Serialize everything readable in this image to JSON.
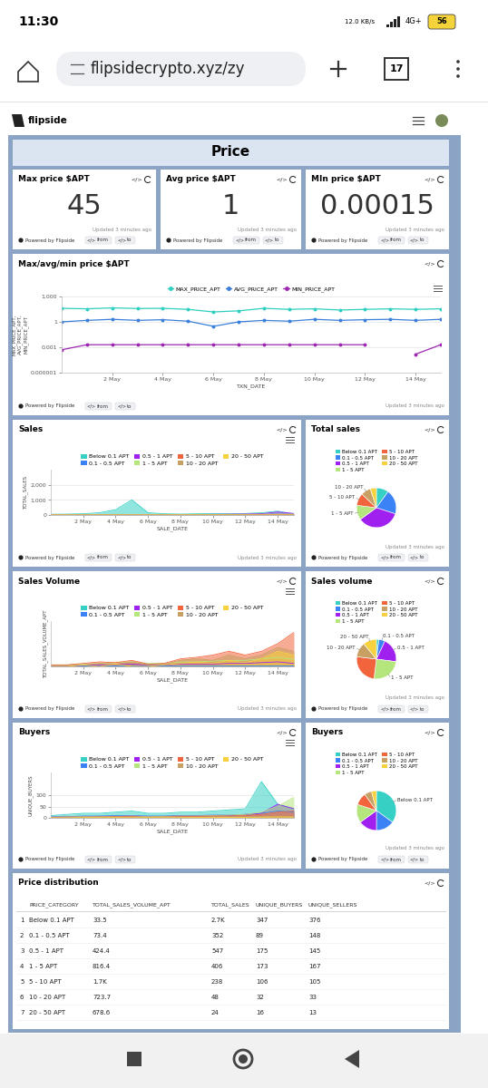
{
  "status_bar": {
    "time": "11:30",
    "speed": "12.0 KB/s",
    "network": "4G+",
    "battery": "56"
  },
  "browser": {
    "url": "flipsidecrypto.xyz/zy",
    "tabs": "17"
  },
  "header": {
    "brand": "flipside"
  },
  "section": {
    "title": "Price"
  },
  "panel_footer": {
    "powered_by": "Powered by Flipside",
    "embed": "</>",
    "from": "from",
    "to": "to",
    "updated": "Updated 3 minutes ago"
  },
  "kpis": [
    {
      "title": "Max price $APT",
      "value": 45
    },
    {
      "title": "Avg price $APT",
      "value": 1
    },
    {
      "title": "MIn price $APT",
      "value": 0.00015
    }
  ],
  "chart_data": [
    {
      "type": "line",
      "title": "Max/avg/min price $APT",
      "x_label": "TXN_DATE",
      "y_label": "MAX_PRICE_APT,\nAVG_PRICE_APT,\nMIN_PRICE_APT",
      "categories": [
        null,
        null,
        "2 May",
        null,
        "4 May",
        null,
        "6 May",
        null,
        "8 May",
        null,
        "10 May",
        null,
        "12 May",
        null,
        "14 May",
        null
      ],
      "series": [
        {
          "name": "MAX_PRICE_APT",
          "color": "#2ecfc0",
          "marker": "circle",
          "values": [
            40,
            35,
            45,
            38,
            40,
            30,
            15,
            20,
            40,
            30,
            35,
            25,
            30,
            35,
            30,
            35
          ]
        },
        {
          "name": "AVG_PRICE_APT",
          "color": "#3a7fd9",
          "marker": "circle",
          "values": [
            1,
            1.5,
            2,
            1.5,
            1.8,
            1.2,
            0.3,
            1,
            1.5,
            1.2,
            2,
            1.5,
            1.8,
            2,
            1.5,
            2
          ]
        },
        {
          "name": "MIN_PRICE_APT",
          "color": "#9c27b0",
          "marker": "circle",
          "values": [
            0.0005,
            0.002,
            0.002,
            0.002,
            0.002,
            0.002,
            0.002,
            0.002,
            0.002,
            0.002,
            0.002,
            0.002,
            0.002,
            null,
            0.00015,
            0.002
          ]
        }
      ],
      "log": "y",
      "ylim": [
        1e-06,
        1000
      ],
      "yticks": [
        {
          "value": 1e-06,
          "label": "0.000001"
        },
        0.001,
        1,
        {
          "value": 1000,
          "label": "1,000"
        }
      ],
      "grid": true,
      "legend": "top"
    },
    {
      "type": "area",
      "title": "Sales",
      "x_label": "SALE_DATE",
      "y_label": "TOTAL_SALES",
      "categories": [
        null,
        null,
        "2 May",
        null,
        "4 May",
        null,
        "6 May",
        null,
        "8 May",
        null,
        "10 May",
        null,
        "12 May",
        null,
        "14 May",
        null
      ],
      "series": [
        {
          "name": "Below 0.1 APT",
          "color": "#36d1c4",
          "values": [
            50,
            60,
            80,
            150,
            350,
            1000,
            150,
            80,
            60,
            80,
            100,
            80,
            100,
            150,
            250,
            80
          ]
        },
        {
          "name": "0.1 - 0.5 APT",
          "color": "#3b82f6",
          "values": [
            10,
            15,
            20,
            20,
            25,
            30,
            20,
            20,
            25,
            25,
            30,
            25,
            25,
            30,
            40,
            30
          ]
        },
        {
          "name": "0.5 - 1 APT",
          "color": "#a020f0",
          "values": [
            10,
            10,
            15,
            20,
            20,
            25,
            20,
            20,
            30,
            30,
            40,
            50,
            60,
            80,
            200,
            100
          ]
        },
        {
          "name": "1 - 5 APT",
          "color": "#b5e67e",
          "values": [
            10,
            10,
            15,
            15,
            20,
            20,
            15,
            20,
            25,
            25,
            30,
            30,
            35,
            40,
            60,
            50
          ]
        },
        {
          "name": "5 - 10 APT",
          "color": "#f2643c",
          "values": [
            5,
            5,
            5,
            5,
            10,
            10,
            5,
            10,
            10,
            15,
            15,
            20,
            25,
            30,
            40,
            30
          ]
        },
        {
          "name": "10 - 20 APT",
          "color": "#c9a063",
          "values": [
            1,
            1,
            2,
            2,
            2,
            3,
            2,
            2,
            3,
            3,
            4,
            4,
            5,
            5,
            6,
            5
          ]
        },
        {
          "name": "20 - 50 APT",
          "color": "#f7d23e",
          "values": [
            0,
            1,
            1,
            1,
            1,
            1,
            1,
            1,
            1,
            2,
            2,
            2,
            2,
            2,
            3,
            2
          ]
        }
      ],
      "ylim": [
        0,
        3000
      ],
      "yticks": [
        0,
        {
          "value": 1000,
          "label": "1,000"
        },
        {
          "value": 2000,
          "label": "2,000"
        }
      ],
      "grid": true,
      "legend": "top",
      "stacked": false
    },
    {
      "type": "pie",
      "title": "Total sales",
      "categories": [
        "Below 0.1 APT",
        "0.1 - 0.5 APT",
        "0.5 - 1 APT",
        "1 - 5 APT",
        "5 - 10 APT",
        "10 - 20 APT",
        "20 - 50 APT"
      ],
      "values": [
        10,
        20,
        35,
        12,
        10,
        8,
        5
      ],
      "colors": [
        "#36d1c4",
        "#3b82f6",
        "#a020f0",
        "#b5e67e",
        "#f2643c",
        "#c9a063",
        "#f7d23e"
      ],
      "slice_labels": [
        null,
        null,
        null,
        "1 - 5 APT",
        "5 - 10 APT",
        "10 - 20 APT",
        null
      ],
      "legend": "top"
    },
    {
      "type": "area",
      "title": "Sales Volume",
      "x_label": "SALE_DATE",
      "y_label": "TOTAL_SALES_VOLUME_APT",
      "categories": [
        null,
        null,
        "2 May",
        null,
        "4 May",
        null,
        "6 May",
        null,
        "8 May",
        null,
        "10 May",
        null,
        "12 May",
        null,
        "14 May",
        null
      ],
      "series": [
        {
          "name": "Below 0.1 APT",
          "color": "#36d1c4",
          "values": [
            3,
            3,
            3,
            3,
            5,
            8,
            3,
            3,
            3,
            3,
            3,
            3,
            3,
            3,
            4,
            3
          ]
        },
        {
          "name": "0.1 - 0.5 APT",
          "color": "#3b82f6",
          "values": [
            5,
            5,
            5,
            5,
            6,
            8,
            5,
            5,
            5,
            6,
            6,
            5,
            5,
            6,
            8,
            6
          ]
        },
        {
          "name": "0.5 - 1 APT",
          "color": "#a020f0",
          "values": [
            10,
            10,
            15,
            20,
            25,
            30,
            20,
            20,
            30,
            30,
            30,
            40,
            40,
            50,
            60,
            40
          ]
        },
        {
          "name": "1 - 5 APT",
          "color": "#b5e67e",
          "values": [
            20,
            20,
            30,
            40,
            50,
            60,
            40,
            40,
            60,
            60,
            70,
            80,
            80,
            100,
            120,
            90
          ]
        },
        {
          "name": "5 - 10 APT",
          "color": "#f2643c",
          "values": [
            20,
            20,
            40,
            60,
            50,
            80,
            30,
            40,
            100,
            120,
            150,
            200,
            150,
            200,
            300,
            450
          ]
        },
        {
          "name": "10 - 20 APT",
          "color": "#c9a063",
          "values": [
            10,
            10,
            20,
            40,
            30,
            60,
            20,
            30,
            80,
            100,
            80,
            150,
            100,
            150,
            250,
            200
          ]
        },
        {
          "name": "20 - 50 APT",
          "color": "#f7d23e",
          "values": [
            0,
            0,
            20,
            0,
            30,
            0,
            0,
            20,
            40,
            60,
            40,
            80,
            50,
            100,
            200,
            150
          ]
        }
      ],
      "ylim": [
        0,
        600
      ],
      "tick_labels": "x",
      "grid": false,
      "legend": "top",
      "stacked": false
    },
    {
      "type": "pie",
      "title": "Sales volume",
      "categories": [
        "Below 0.1 APT",
        "0.1 - 0.5 APT",
        "0.5 - 1 APT",
        "1 - 5 APT",
        "5 - 10 APT",
        "10 - 20 APT",
        "20 - 50 APT"
      ],
      "values": [
        2,
        5,
        20,
        25,
        25,
        12,
        11
      ],
      "colors": [
        "#36d1c4",
        "#3b82f6",
        "#a020f0",
        "#b5e67e",
        "#f2643c",
        "#c9a063",
        "#f7d23e"
      ],
      "slice_labels": [
        null,
        "0.1 - 0.5 APT",
        "0.5 - 1 APT",
        "1 - 5 APT",
        null,
        "10 - 20 APT",
        "20 - 50 APT"
      ],
      "legend": "top"
    },
    {
      "type": "area",
      "title": "Buyers",
      "x_label": "SALE_DATE",
      "y_label": "UNIQUE_BUYERS",
      "categories": [
        null,
        null,
        "2 May",
        null,
        "4 May",
        null,
        "6 May",
        null,
        "8 May",
        null,
        "10 May",
        null,
        "12 May",
        null,
        "14 May",
        null
      ],
      "series": [
        {
          "name": "Below 0.1 APT",
          "color": "#36d1c4",
          "values": [
            10,
            15,
            20,
            20,
            25,
            30,
            20,
            20,
            25,
            25,
            30,
            35,
            40,
            160,
            60,
            40
          ]
        },
        {
          "name": "0.1 - 0.5 APT",
          "color": "#3b82f6",
          "values": [
            5,
            5,
            8,
            8,
            10,
            10,
            8,
            8,
            10,
            10,
            12,
            12,
            15,
            20,
            30,
            25
          ]
        },
        {
          "name": "0.5 - 1 APT",
          "color": "#a020f0",
          "values": [
            3,
            4,
            5,
            5,
            6,
            8,
            5,
            6,
            8,
            8,
            10,
            10,
            15,
            20,
            60,
            40
          ]
        },
        {
          "name": "1 - 5 APT",
          "color": "#b5e67e",
          "values": [
            3,
            4,
            5,
            5,
            6,
            8,
            5,
            6,
            8,
            8,
            10,
            12,
            15,
            25,
            50,
            90
          ]
        },
        {
          "name": "5 - 10 APT",
          "color": "#f2643c",
          "values": [
            2,
            3,
            3,
            4,
            5,
            5,
            3,
            4,
            5,
            6,
            8,
            8,
            10,
            15,
            25,
            30
          ]
        },
        {
          "name": "10 - 20 APT",
          "color": "#c9a063",
          "values": [
            1,
            1,
            2,
            2,
            2,
            3,
            2,
            2,
            3,
            3,
            3,
            4,
            4,
            5,
            8,
            6
          ]
        },
        {
          "name": "20 - 50 APT",
          "color": "#f7d23e",
          "values": [
            0,
            0,
            1,
            1,
            1,
            1,
            1,
            1,
            1,
            2,
            2,
            2,
            2,
            3,
            4,
            3
          ]
        }
      ],
      "ylim": [
        0,
        200
      ],
      "yticks": [
        0,
        50,
        100
      ],
      "grid": true,
      "legend": "top",
      "stacked": false
    },
    {
      "type": "pie",
      "title": "Buyers",
      "categories": [
        "Below 0.1 APT",
        "0.1 - 0.5 APT",
        "0.5 - 1 APT",
        "1 - 5 APT",
        "5 - 10 APT",
        "10 - 20 APT",
        "20 - 50 APT"
      ],
      "values": [
        35,
        15,
        15,
        15,
        10,
        6,
        4
      ],
      "colors": [
        "#36d1c4",
        "#3b82f6",
        "#a020f0",
        "#b5e67e",
        "#f2643c",
        "#c9a063",
        "#f7d23e"
      ],
      "slice_labels": [
        "Below 0.1 APT",
        null,
        null,
        null,
        null,
        null,
        null
      ],
      "legend": "top"
    }
  ],
  "table": {
    "title": "Price distribution",
    "columns": [
      "PRICE_CATEGORY",
      "TOTAL_SALES_VOLUME_APT",
      "TOTAL_SALES",
      "UNIQUE_BUYERS",
      "UNIQUE_SELLERS"
    ],
    "rows": [
      [
        "1",
        "Below 0.1 APT",
        "33.5",
        "2.7K",
        "347",
        "376"
      ],
      [
        "2",
        "0.1 - 0.5 APT",
        "73.4",
        "352",
        "89",
        "148"
      ],
      [
        "3",
        "0.5 - 1 APT",
        "424.4",
        "547",
        "175",
        "145"
      ],
      [
        "4",
        "1 - 5 APT",
        "816.4",
        "406",
        "173",
        "167"
      ],
      [
        "5",
        "5 - 10 APT",
        "1.7K",
        "238",
        "106",
        "105"
      ],
      [
        "6",
        "10 - 20 APT",
        "723.7",
        "48",
        "32",
        "33"
      ],
      [
        "7",
        "20 - 50 APT",
        "678.6",
        "24",
        "16",
        "13"
      ]
    ]
  }
}
